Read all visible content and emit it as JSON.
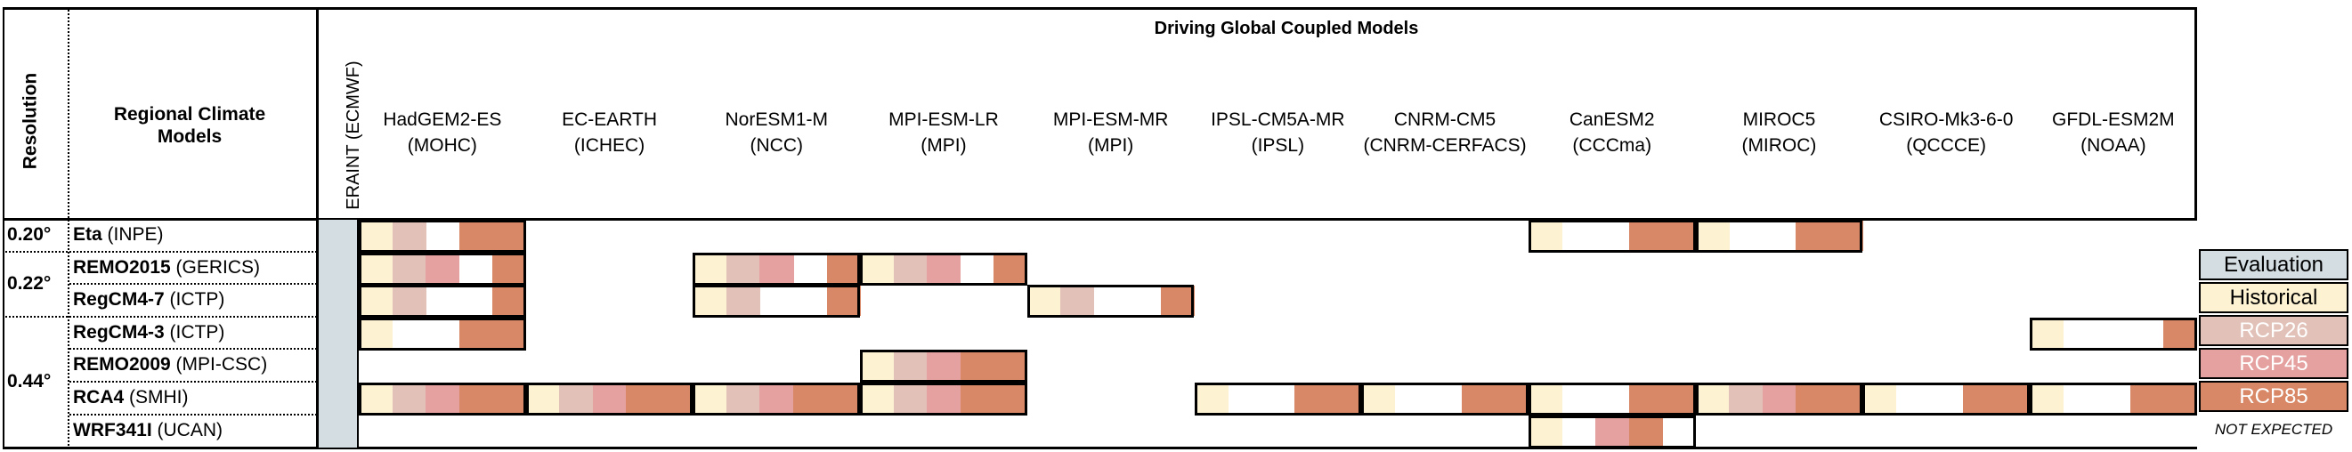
{
  "header": {
    "resolution": "Resolution",
    "regional_models_line1": "Regional Climate",
    "regional_models_line2": "Models",
    "driving_title": "Driving Global Coupled Models",
    "eraint": "ERAINT (ECMWF)"
  },
  "gcms": [
    {
      "name": "HadGEM2-ES",
      "inst": "(MOHC)"
    },
    {
      "name": "EC-EARTH",
      "inst": "(ICHEC)"
    },
    {
      "name": "NorESM1-M",
      "inst": "(NCC)"
    },
    {
      "name": "MPI-ESM-LR",
      "inst": "(MPI)"
    },
    {
      "name": "MPI-ESM-MR",
      "inst": "(MPI)"
    },
    {
      "name": "IPSL-CM5A-MR",
      "inst": "(IPSL)"
    },
    {
      "name": "CNRM-CM5",
      "inst": "(CNRM-CERFACS)"
    },
    {
      "name": "CanESM2",
      "inst": "(CCCma)"
    },
    {
      "name": "MIROC5",
      "inst": "(MIROC)"
    },
    {
      "name": "CSIRO-Mk3-6-0",
      "inst": "(QCCCE)"
    },
    {
      "name": "GFDL-ESM2M",
      "inst": "(NOAA)"
    }
  ],
  "resolutions": [
    {
      "label": "0.20°",
      "rows": [
        0,
        0
      ]
    },
    {
      "label": "0.22°",
      "rows": [
        1,
        2
      ]
    },
    {
      "label": "0.44°",
      "rows": [
        3,
        6
      ]
    }
  ],
  "rcms": [
    {
      "name": "Eta",
      "inst": "(INPE)",
      "evaluation": true,
      "runs": [
        [
          1,
          1,
          0,
          1,
          1
        ],
        [
          0,
          0,
          0,
          0,
          0
        ],
        [
          0,
          0,
          0,
          0,
          0
        ],
        [
          0,
          0,
          0,
          0,
          0
        ],
        [
          0,
          0,
          0,
          0,
          0
        ],
        [
          0,
          0,
          0,
          0,
          0
        ],
        [
          0,
          0,
          0,
          0,
          0
        ],
        [
          1,
          0,
          0,
          1,
          1
        ],
        [
          1,
          0,
          0,
          1,
          1
        ],
        [
          0,
          0,
          0,
          0,
          0
        ],
        [
          0,
          0,
          0,
          0,
          0
        ]
      ]
    },
    {
      "name": "REMO2015",
      "inst": "(GERICS)",
      "evaluation": true,
      "runs": [
        [
          1,
          1,
          1,
          0,
          1
        ],
        [
          0,
          0,
          0,
          0,
          0
        ],
        [
          1,
          1,
          1,
          0,
          1
        ],
        [
          1,
          1,
          1,
          0,
          1
        ],
        [
          0,
          0,
          0,
          0,
          0
        ],
        [
          0,
          0,
          0,
          0,
          0
        ],
        [
          0,
          0,
          0,
          0,
          0
        ],
        [
          0,
          0,
          0,
          0,
          0
        ],
        [
          0,
          0,
          0,
          0,
          0
        ],
        [
          0,
          0,
          0,
          0,
          0
        ],
        [
          0,
          0,
          0,
          0,
          0
        ]
      ]
    },
    {
      "name": "RegCM4-7",
      "inst": "(ICTP)",
      "evaluation": true,
      "runs": [
        [
          1,
          1,
          0,
          0,
          1
        ],
        [
          0,
          0,
          0,
          0,
          0
        ],
        [
          1,
          1,
          0,
          0,
          1
        ],
        [
          0,
          0,
          0,
          0,
          0
        ],
        [
          1,
          1,
          0,
          0,
          1
        ],
        [
          0,
          0,
          0,
          0,
          0
        ],
        [
          0,
          0,
          0,
          0,
          0
        ],
        [
          0,
          0,
          0,
          0,
          0
        ],
        [
          0,
          0,
          0,
          0,
          0
        ],
        [
          0,
          0,
          0,
          0,
          0
        ],
        [
          0,
          0,
          0,
          0,
          0
        ]
      ]
    },
    {
      "name": "RegCM4-3",
      "inst": "(ICTP)",
      "evaluation": true,
      "runs": [
        [
          1,
          0,
          0,
          1,
          1
        ],
        [
          0,
          0,
          0,
          0,
          0
        ],
        [
          0,
          0,
          0,
          0,
          0
        ],
        [
          0,
          0,
          0,
          0,
          0
        ],
        [
          0,
          0,
          0,
          0,
          0
        ],
        [
          0,
          0,
          0,
          0,
          0
        ],
        [
          0,
          0,
          0,
          0,
          0
        ],
        [
          0,
          0,
          0,
          0,
          0
        ],
        [
          0,
          0,
          0,
          0,
          0
        ],
        [
          0,
          0,
          0,
          0,
          0
        ],
        [
          1,
          0,
          0,
          0,
          1
        ]
      ]
    },
    {
      "name": "REMO2009",
      "inst": "(MPI-CSC)",
      "evaluation": true,
      "runs": [
        [
          0,
          0,
          0,
          0,
          0
        ],
        [
          0,
          0,
          0,
          0,
          0
        ],
        [
          0,
          0,
          0,
          0,
          0
        ],
        [
          1,
          1,
          1,
          1,
          1
        ],
        [
          0,
          0,
          0,
          0,
          0
        ],
        [
          0,
          0,
          0,
          0,
          0
        ],
        [
          0,
          0,
          0,
          0,
          0
        ],
        [
          0,
          0,
          0,
          0,
          0
        ],
        [
          0,
          0,
          0,
          0,
          0
        ],
        [
          0,
          0,
          0,
          0,
          0
        ],
        [
          0,
          0,
          0,
          0,
          0
        ]
      ]
    },
    {
      "name": "RCA4",
      "inst": "(SMHI)",
      "evaluation": true,
      "runs": [
        [
          1,
          1,
          1,
          1,
          1
        ],
        [
          1,
          1,
          1,
          1,
          1
        ],
        [
          1,
          1,
          1,
          1,
          1
        ],
        [
          1,
          1,
          1,
          1,
          1
        ],
        [
          0,
          0,
          0,
          0,
          0
        ],
        [
          1,
          0,
          0,
          1,
          1
        ],
        [
          1,
          0,
          0,
          1,
          1
        ],
        [
          1,
          0,
          0,
          1,
          1
        ],
        [
          1,
          1,
          1,
          1,
          1
        ],
        [
          1,
          0,
          0,
          1,
          1
        ],
        [
          1,
          0,
          0,
          1,
          1
        ]
      ]
    },
    {
      "name": "WRF341I",
      "inst": "(UCAN)",
      "evaluation": true,
      "runs": [
        [
          0,
          0,
          0,
          0,
          0
        ],
        [
          0,
          0,
          0,
          0,
          0
        ],
        [
          0,
          0,
          0,
          0,
          0
        ],
        [
          0,
          0,
          0,
          0,
          0
        ],
        [
          0,
          0,
          0,
          0,
          0
        ],
        [
          0,
          0,
          0,
          0,
          0
        ],
        [
          0,
          0,
          0,
          0,
          0
        ],
        [
          1,
          0,
          1,
          1,
          0
        ],
        [
          0,
          0,
          0,
          0,
          0
        ],
        [
          0,
          0,
          0,
          0,
          0
        ],
        [
          0,
          0,
          0,
          0,
          0
        ]
      ]
    }
  ],
  "legend": [
    {
      "label": "Evaluation",
      "color": "#d3dde2"
    },
    {
      "label": "Historical",
      "color": "#fdf2d2"
    },
    {
      "label": "RCP26",
      "color": "#e2c2b8"
    },
    {
      "label": "RCP45",
      "color": "#e5a19f"
    },
    {
      "label": "RCP85",
      "color": "#d88866"
    },
    {
      "label": "NOT EXPECTED",
      "color": "#ffffff"
    }
  ],
  "colors": {
    "evaluation": "#d3dde2",
    "historical": "#fdf2d2",
    "rcp26": "#e2c2b8",
    "rcp45": "#e5a19f",
    "rcp85": "#d88866"
  }
}
